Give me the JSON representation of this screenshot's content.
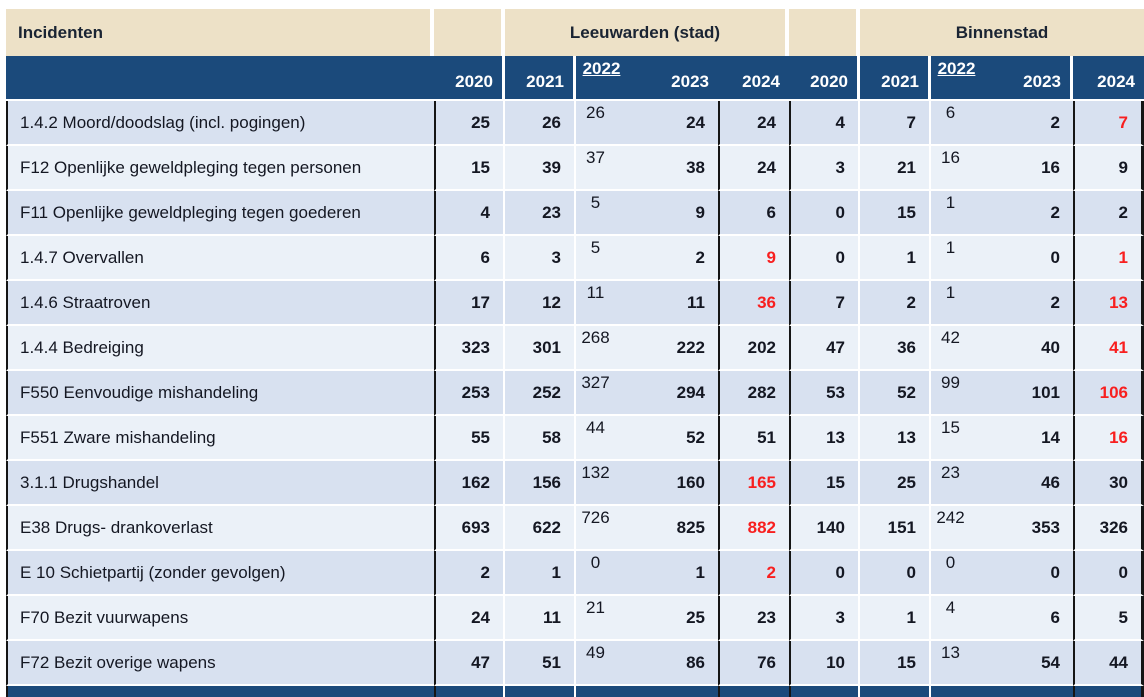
{
  "header": {
    "incidenten": "Incidenten",
    "group_leeuwarden": "Leeuwarden (stad)",
    "group_binnenstad": "Binnenstad",
    "years": [
      "2020",
      "2021",
      "2022",
      "2023",
      "2024"
    ]
  },
  "colors": {
    "header_cream": "#ede1c7",
    "header_blue": "#1b4a7b",
    "row_dark": "#d8e1f0",
    "row_light": "#ebf1f8",
    "highlight_red": "#f81f1f"
  },
  "rows": [
    {
      "label": "1.4.2 Moord/doodslag (incl. pogingen)",
      "values": [
        "25",
        "26",
        "26",
        "24",
        "24",
        "4",
        "7",
        "6",
        "2",
        "7"
      ],
      "red": [
        9
      ]
    },
    {
      "label": "F12 Openlijke geweldpleging tegen personen",
      "values": [
        "15",
        "39",
        "37",
        "38",
        "24",
        "3",
        "21",
        "16",
        "16",
        "9"
      ],
      "red": []
    },
    {
      "label": "F11 Openlijke geweldpleging tegen goederen",
      "values": [
        "4",
        "23",
        "5",
        "9",
        "6",
        "0",
        "15",
        "1",
        "2",
        "2"
      ],
      "red": []
    },
    {
      "label": "1.4.7 Overvallen",
      "values": [
        "6",
        "3",
        "5",
        "2",
        "9",
        "0",
        "1",
        "1",
        "0",
        "1"
      ],
      "red": [
        4,
        9
      ]
    },
    {
      "label": "1.4.6 Straatroven",
      "values": [
        "17",
        "12",
        "11",
        "11",
        "36",
        "7",
        "2",
        "1",
        "2",
        "13"
      ],
      "red": [
        4,
        9
      ]
    },
    {
      "label": "1.4.4 Bedreiging",
      "values": [
        "323",
        "301",
        "268",
        "222",
        "202",
        "47",
        "36",
        "42",
        "40",
        "41"
      ],
      "red": [
        9
      ]
    },
    {
      "label": "F550 Eenvoudige mishandeling",
      "values": [
        "253",
        "252",
        "327",
        "294",
        "282",
        "53",
        "52",
        "99",
        "101",
        "106"
      ],
      "red": [
        9
      ]
    },
    {
      "label": "F551 Zware mishandeling",
      "values": [
        "55",
        "58",
        "44",
        "52",
        "51",
        "13",
        "13",
        "15",
        "14",
        "16"
      ],
      "red": [
        9
      ]
    },
    {
      "label": "3.1.1 Drugshandel",
      "values": [
        "162",
        "156",
        "132",
        "160",
        "165",
        "15",
        "25",
        "23",
        "46",
        "30"
      ],
      "red": [
        4
      ]
    },
    {
      "label": "E38 Drugs- drankoverlast",
      "values": [
        "693",
        "622",
        "726",
        "825",
        "882",
        "140",
        "151",
        "242",
        "353",
        "326"
      ],
      "red": [
        4
      ]
    },
    {
      "label": "E 10 Schietpartij (zonder gevolgen)",
      "values": [
        "2",
        "1",
        "0",
        "1",
        "2",
        "0",
        "0",
        "0",
        "0",
        "0"
      ],
      "red": [
        4
      ]
    },
    {
      "label": "F70 Bezit vuurwapens",
      "values": [
        "24",
        "11",
        "21",
        "25",
        "23",
        "3",
        "1",
        "4",
        "6",
        "5"
      ],
      "red": []
    },
    {
      "label": "F72 Bezit overige wapens",
      "values": [
        "47",
        "51",
        "49",
        "86",
        "76",
        "10",
        "15",
        "13",
        "54",
        "44"
      ],
      "red": []
    }
  ]
}
